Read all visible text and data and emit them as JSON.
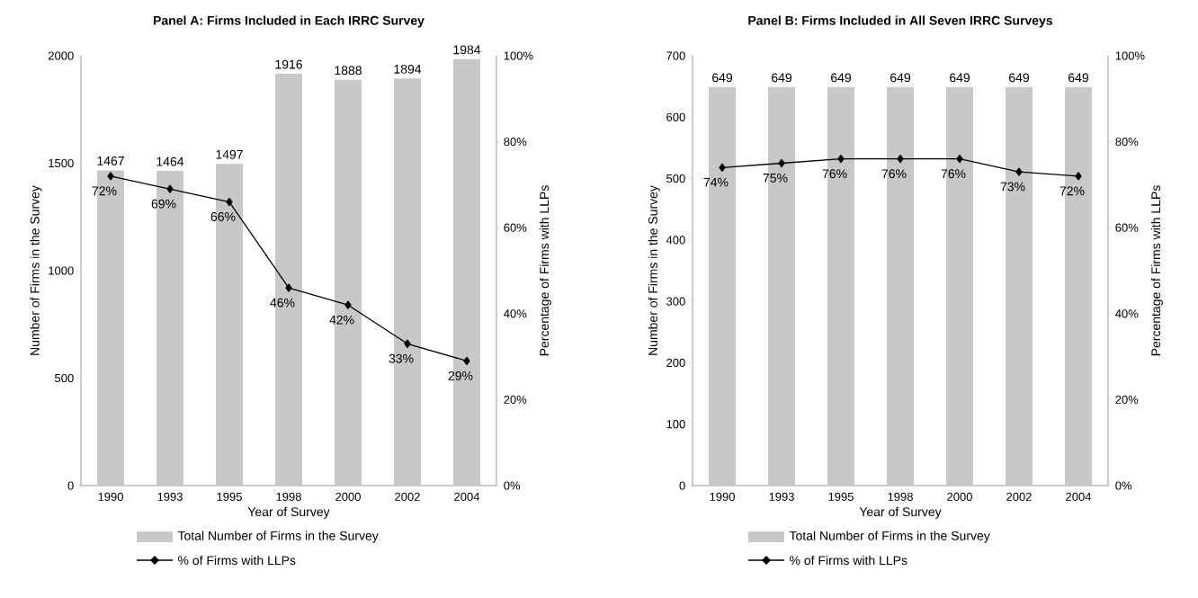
{
  "chart_data": [
    {
      "type": "bar",
      "title": "Panel A: Firms Included in Each IRRC Survey",
      "xlabel": "Year of Survey",
      "ylabel": "Number of Firms in the Survey",
      "y2label": "Percentage of Firms with LLPs",
      "categories": [
        "1990",
        "1993",
        "1995",
        "1998",
        "2000",
        "2002",
        "2004"
      ],
      "series": [
        {
          "name": "Total Number of Firms in the Survey",
          "color": "#c8c8c8",
          "values": [
            1467,
            1464,
            1497,
            1916,
            1888,
            1894,
            1984
          ],
          "value_labels": [
            "1467",
            "1464",
            "1497",
            "1916",
            "1888",
            "1894",
            "1984"
          ]
        },
        {
          "name": "% of Firms with LLPs",
          "type": "line",
          "axis": "y2",
          "color": "#000000",
          "values": [
            72,
            69,
            66,
            46,
            42,
            33,
            29
          ],
          "value_labels": [
            "72%",
            "69%",
            "66%",
            "46%",
            "42%",
            "33%",
            "29%"
          ]
        }
      ],
      "ylim": [
        0,
        2000
      ],
      "yticks": [
        0,
        500,
        1000,
        1500,
        2000
      ],
      "y2lim": [
        0,
        100
      ],
      "y2ticks": [
        {
          "value": 0,
          "label": "0%"
        },
        {
          "value": 20,
          "label": "20%"
        },
        {
          "value": 40,
          "label": "40%"
        },
        {
          "value": 60,
          "label": "60%"
        },
        {
          "value": 80,
          "label": "80%"
        },
        {
          "value": 100,
          "label": "100%"
        }
      ],
      "legend": "bottom",
      "marker": "diamond",
      "line_style": "solid"
    },
    {
      "type": "bar",
      "title": "Panel B: Firms Included in All Seven IRRC Surveys",
      "xlabel": "Year of Survey",
      "ylabel": "Number of Firms in the Survey",
      "y2label": "Percentage of Firms with LLPs",
      "categories": [
        "1990",
        "1993",
        "1995",
        "1998",
        "2000",
        "2002",
        "2004"
      ],
      "series": [
        {
          "name": "Total Number of Firms in the Survey",
          "color": "#c8c8c8",
          "values": [
            649,
            649,
            649,
            649,
            649,
            649,
            649
          ],
          "value_labels": [
            "649",
            "649",
            "649",
            "649",
            "649",
            "649",
            "649"
          ]
        },
        {
          "name": "% of Firms with LLPs",
          "type": "line",
          "axis": "y2",
          "color": "#000000",
          "values": [
            74,
            75,
            76,
            76,
            76,
            73,
            72
          ],
          "value_labels": [
            "74%",
            "75%",
            "76%",
            "76%",
            "76%",
            "73%",
            "72%"
          ]
        }
      ],
      "ylim": [
        0,
        700
      ],
      "yticks": [
        0,
        100,
        200,
        300,
        400,
        500,
        600,
        700
      ],
      "y2lim": [
        0,
        100
      ],
      "y2ticks": [
        {
          "value": 0,
          "label": "0%"
        },
        {
          "value": 20,
          "label": "20%"
        },
        {
          "value": 40,
          "label": "40%"
        },
        {
          "value": 60,
          "label": "60%"
        },
        {
          "value": 80,
          "label": "80%"
        },
        {
          "value": 100,
          "label": "100%"
        }
      ],
      "legend": "bottom",
      "marker": "diamond",
      "line_style": "solid"
    }
  ]
}
